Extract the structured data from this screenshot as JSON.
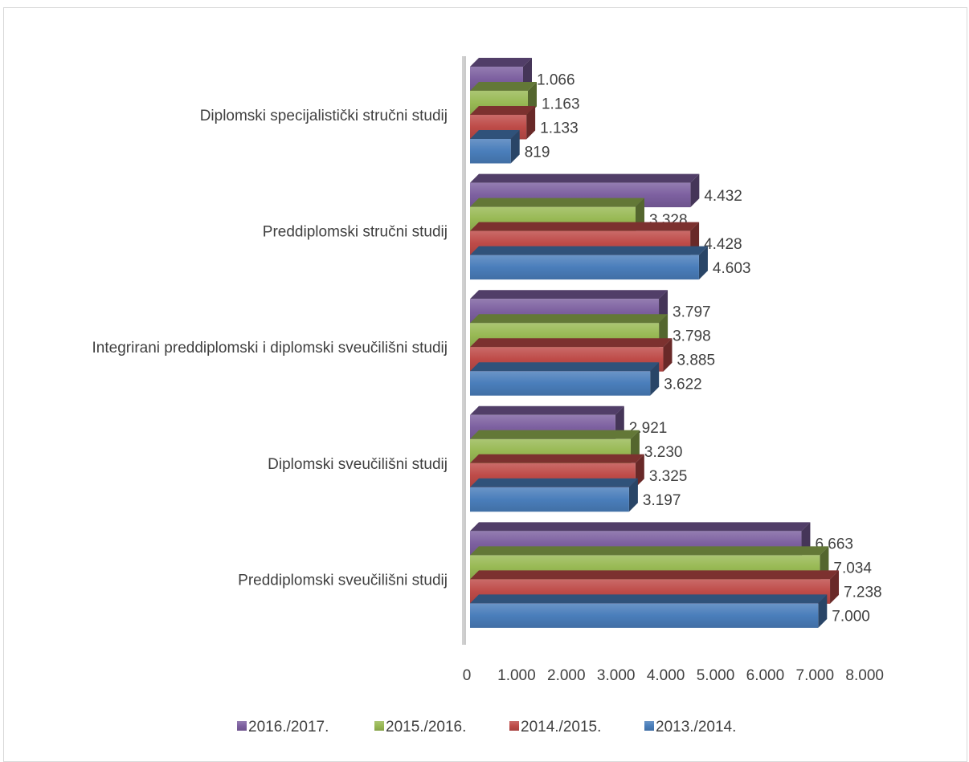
{
  "chart_data": {
    "type": "bar",
    "orientation": "horizontal",
    "style": "3d",
    "categories": [
      "Preddiplomski sveučilišni studij",
      "Diplomski sveučilišni studij",
      "Integrirani preddiplomski i diplomski sveučilišni  studij",
      "Preddiplomski stručni studij",
      "Diplomski specijalistički stručni studij"
    ],
    "series": [
      {
        "name": "2013./2014.",
        "color": "#4a7ebb",
        "values": [
          7000,
          3197,
          3622,
          4603,
          819
        ],
        "labels": [
          "7.000",
          "3.197",
          "3.622",
          "4.603",
          "819"
        ]
      },
      {
        "name": "2014./2015.",
        "color": "#be4b48",
        "values": [
          7238,
          3325,
          3885,
          4428,
          1133
        ],
        "labels": [
          "7.238",
          "3.325",
          "3.885",
          "4.428",
          "1.133"
        ]
      },
      {
        "name": "2015./2016.",
        "color": "#98b954",
        "values": [
          7034,
          3230,
          3798,
          3328,
          1163
        ],
        "labels": [
          "7.034",
          "3.230",
          "3.798",
          "3.328",
          "1.163"
        ]
      },
      {
        "name": "2016./2017.",
        "color": "#7d60a0",
        "values": [
          6663,
          2921,
          3797,
          4432,
          1066
        ],
        "labels": [
          "6.663",
          "2.921",
          "3.797",
          "4.432",
          "1.066"
        ]
      }
    ],
    "xlim": [
      0,
      8000
    ],
    "xticks": [
      0,
      1000,
      2000,
      3000,
      4000,
      5000,
      6000,
      7000,
      8000
    ],
    "xtick_labels": [
      "0",
      "1.000",
      "2.000",
      "3.000",
      "4.000",
      "5.000",
      "6.000",
      "7.000",
      "8.000"
    ],
    "legend": {
      "position": "bottom",
      "order": [
        "2016./2017.",
        "2015./2016.",
        "2014./2015.",
        "2013./2014."
      ]
    },
    "grid": false
  }
}
